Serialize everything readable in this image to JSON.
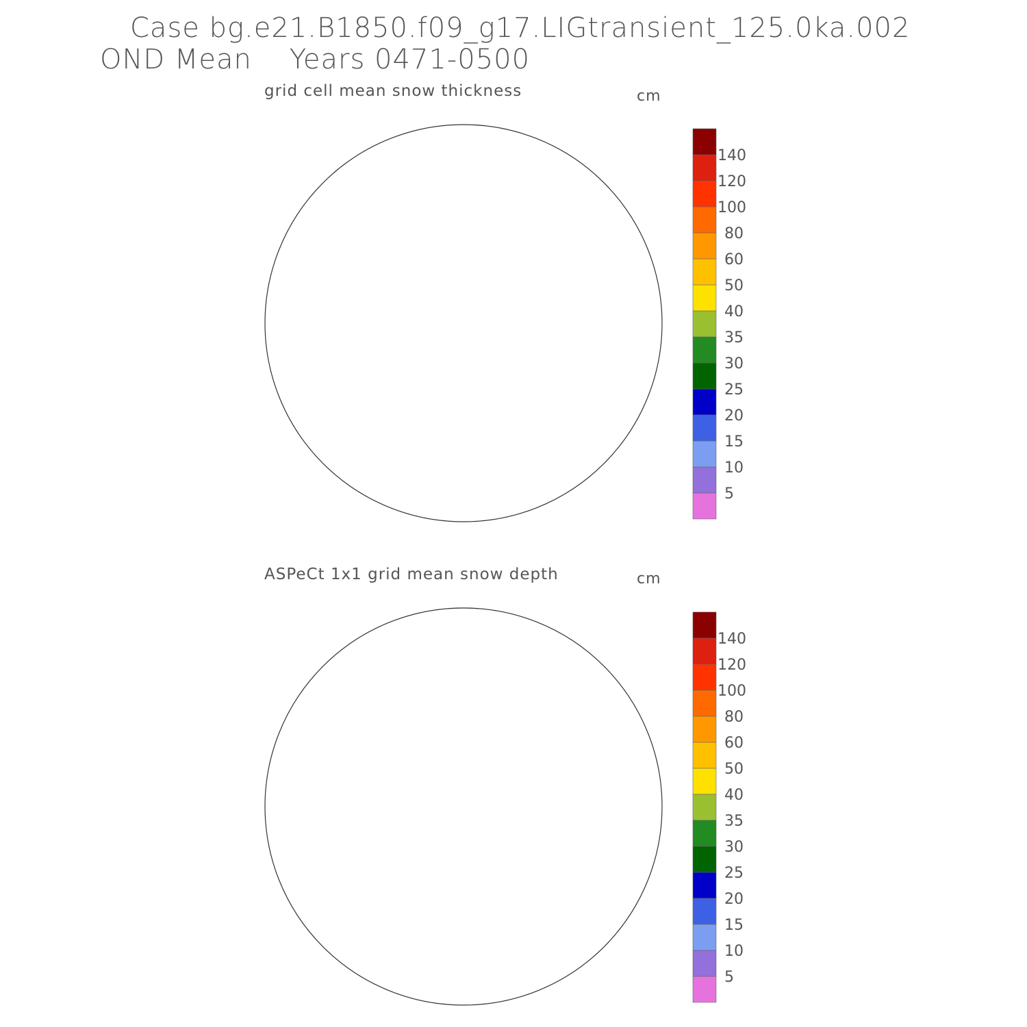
{
  "header": {
    "line1": "Case bg.e21.B1850.f09_g17.LIGtransient_125.0ka.002",
    "line2": "OND Mean    Years 0471-0500"
  },
  "panels": [
    {
      "title": "grid cell mean snow thickness",
      "units": "cm",
      "kind": "model"
    },
    {
      "title": "ASPeCt 1x1 grid mean snow depth",
      "units": "cm",
      "kind": "obs"
    }
  ],
  "colorbar": {
    "labels": [
      "5",
      "10",
      "15",
      "20",
      "25",
      "30",
      "35",
      "40",
      "50",
      "60",
      "80",
      "100",
      "120",
      "140"
    ],
    "colors": [
      "#e673dd",
      "#9370db",
      "#7b9ef0",
      "#3e60e4",
      "#0000c8",
      "#006400",
      "#228b22",
      "#9ac032",
      "#ffe100",
      "#ffc000",
      "#ff9800",
      "#ff6a00",
      "#ff3300",
      "#dd2010",
      "#8b0000"
    ]
  },
  "map": {
    "land_color": "#c0c0c0",
    "projection": "south-polar-stereographic"
  }
}
